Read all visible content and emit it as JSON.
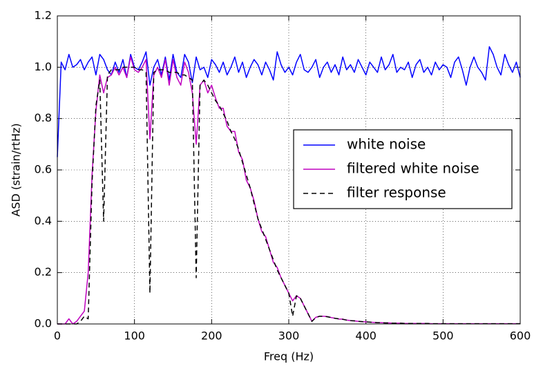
{
  "chart_data": {
    "type": "line",
    "xlabel": "Freq (Hz)",
    "ylabel": "ASD (strain/rtHz)",
    "x": [
      0,
      5,
      10,
      15,
      20,
      25,
      30,
      35,
      40,
      45,
      50,
      55,
      60,
      65,
      70,
      75,
      80,
      85,
      90,
      95,
      100,
      105,
      110,
      115,
      120,
      125,
      130,
      135,
      140,
      145,
      150,
      155,
      160,
      165,
      170,
      175,
      180,
      185,
      190,
      195,
      200,
      205,
      210,
      215,
      220,
      225,
      230,
      235,
      240,
      245,
      250,
      255,
      260,
      265,
      270,
      275,
      280,
      285,
      290,
      295,
      300,
      305,
      310,
      315,
      320,
      325,
      330,
      335,
      340,
      345,
      350,
      355,
      360,
      365,
      370,
      375,
      380,
      385,
      390,
      395,
      400,
      405,
      410,
      415,
      420,
      425,
      430,
      435,
      440,
      445,
      450,
      455,
      460,
      465,
      470,
      475,
      480,
      485,
      490,
      495,
      500,
      505,
      510,
      515,
      520,
      525,
      530,
      535,
      540,
      545,
      550,
      555,
      560,
      565,
      570,
      575,
      580,
      585,
      590,
      595,
      600
    ],
    "series": [
      {
        "name": "white noise",
        "color": "#0000ff",
        "linestyle": "solid",
        "values": [
          0.65,
          1.02,
          0.99,
          1.05,
          1.0,
          1.01,
          1.03,
          0.99,
          1.02,
          1.04,
          0.97,
          1.05,
          1.03,
          0.99,
          0.97,
          1.02,
          0.98,
          1.03,
          0.96,
          1.05,
          1.0,
          0.99,
          1.02,
          1.06,
          0.93,
          1.0,
          1.03,
          0.97,
          1.04,
          0.95,
          1.05,
          0.98,
          0.96,
          1.05,
          1.02,
          0.94,
          1.04,
          0.99,
          1.0,
          0.96,
          1.03,
          1.01,
          0.98,
          1.02,
          0.97,
          1.0,
          1.04,
          0.98,
          1.02,
          0.96,
          1.0,
          1.03,
          1.01,
          0.97,
          1.02,
          0.99,
          0.95,
          1.06,
          1.01,
          0.98,
          1.0,
          0.97,
          1.02,
          1.05,
          0.99,
          0.98,
          1.0,
          1.03,
          0.96,
          1.0,
          1.02,
          0.98,
          1.01,
          0.97,
          1.04,
          0.99,
          1.01,
          0.98,
          1.03,
          1.0,
          0.97,
          1.02,
          1.0,
          0.98,
          1.04,
          0.99,
          1.01,
          1.05,
          0.98,
          1.0,
          0.99,
          1.02,
          0.96,
          1.01,
          1.03,
          0.98,
          1.0,
          0.97,
          1.02,
          0.99,
          1.01,
          1.0,
          0.96,
          1.02,
          1.04,
          0.99,
          0.93,
          1.0,
          1.04,
          1.0,
          0.98,
          0.95,
          1.08,
          1.05,
          1.0,
          0.97,
          1.05,
          1.01,
          0.98,
          1.02,
          0.96
        ]
      },
      {
        "name": "filtered white noise",
        "color": "#bf00bf",
        "linestyle": "solid",
        "values": [
          0,
          0,
          0,
          0.02,
          0,
          0.01,
          0.03,
          0.05,
          0.2,
          0.58,
          0.83,
          0.97,
          0.9,
          0.96,
          0.97,
          1.0,
          0.97,
          1.0,
          0.96,
          1.04,
          0.99,
          0.98,
          1.0,
          1.03,
          0.72,
          0.97,
          1.0,
          0.96,
          1.03,
          0.93,
          1.03,
          0.96,
          0.93,
          1.02,
          0.98,
          0.9,
          0.7,
          0.93,
          0.95,
          0.9,
          0.93,
          0.88,
          0.84,
          0.84,
          0.77,
          0.75,
          0.75,
          0.67,
          0.64,
          0.56,
          0.53,
          0.48,
          0.41,
          0.36,
          0.34,
          0.29,
          0.24,
          0.22,
          0.18,
          0.15,
          0.12,
          0.09,
          0.11,
          0.1,
          0.07,
          0.04,
          0.01,
          0.026,
          0.03,
          0.03,
          0.029,
          0.025,
          0.022,
          0.019,
          0.019,
          0.015,
          0.013,
          0.012,
          0.01,
          0.009,
          0.008,
          0.007,
          0.006,
          0.005,
          0.005,
          0.004,
          0.004,
          0.003,
          0.003,
          0.003,
          0.002,
          0.002,
          0.002,
          0.002,
          0.002,
          0.002,
          0.002,
          0.001,
          0.001,
          0.001,
          0.001,
          0.001,
          0.001,
          0.001,
          0.001,
          0.001,
          0.001,
          0.001,
          0.001,
          0.001,
          0.001,
          0.001,
          0.001,
          0.001,
          0.001,
          0.001,
          0.001,
          0.001,
          0.001,
          0.001,
          0.001
        ]
      },
      {
        "name": "filter response",
        "color": "#000000",
        "linestyle": "dashed",
        "values": [
          0,
          0,
          0,
          0,
          0,
          0,
          0.01,
          0.03,
          0.02,
          0.55,
          0.85,
          0.95,
          0.4,
          0.97,
          0.99,
          0.99,
          0.99,
          1.0,
          1.0,
          1.0,
          1.0,
          0.99,
          0.99,
          0.98,
          0.12,
          0.98,
          0.99,
          0.99,
          0.99,
          0.98,
          0.98,
          0.98,
          0.97,
          0.97,
          0.96,
          0.95,
          0.18,
          0.93,
          0.95,
          0.93,
          0.9,
          0.87,
          0.85,
          0.82,
          0.79,
          0.75,
          0.72,
          0.68,
          0.63,
          0.58,
          0.53,
          0.47,
          0.41,
          0.37,
          0.33,
          0.29,
          0.25,
          0.21,
          0.18,
          0.15,
          0.12,
          0.03,
          0.11,
          0.1,
          0.07,
          0.04,
          0.01,
          0.025,
          0.03,
          0.03,
          0.028,
          0.025,
          0.022,
          0.02,
          0.018,
          0.015,
          0.013,
          0.012,
          0.01,
          0.009,
          0.008,
          0.007,
          0.006,
          0.005,
          0.005,
          0.004,
          0.004,
          0.003,
          0.003,
          0.003,
          0.002,
          0.002,
          0.002,
          0.002,
          0.002,
          0.002,
          0.002,
          0.001,
          0.001,
          0.001,
          0.001,
          0.001,
          0.001,
          0.001,
          0.001,
          0.001,
          0.001,
          0.001,
          0.001,
          0.001,
          0.001,
          0.001,
          0.001,
          0.001,
          0.001,
          0.001,
          0.001,
          0.001,
          0.001,
          0.001,
          0.001
        ]
      }
    ],
    "xlim": [
      0,
      600
    ],
    "xticks": [
      0,
      100,
      200,
      300,
      400,
      500,
      600
    ],
    "ylim": [
      0,
      1.2
    ],
    "yticks": [
      {
        "value": 0,
        "label": "0.0"
      },
      {
        "value": 0.2,
        "label": "0.2"
      },
      {
        "value": 0.4,
        "label": "0.4"
      },
      {
        "value": 0.6,
        "label": "0.6"
      },
      {
        "value": 0.8,
        "label": "0.8"
      },
      {
        "value": 1,
        "label": "1.0"
      },
      {
        "value": 1.2,
        "label": "1.2"
      }
    ],
    "grid": true,
    "legend": "right"
  }
}
